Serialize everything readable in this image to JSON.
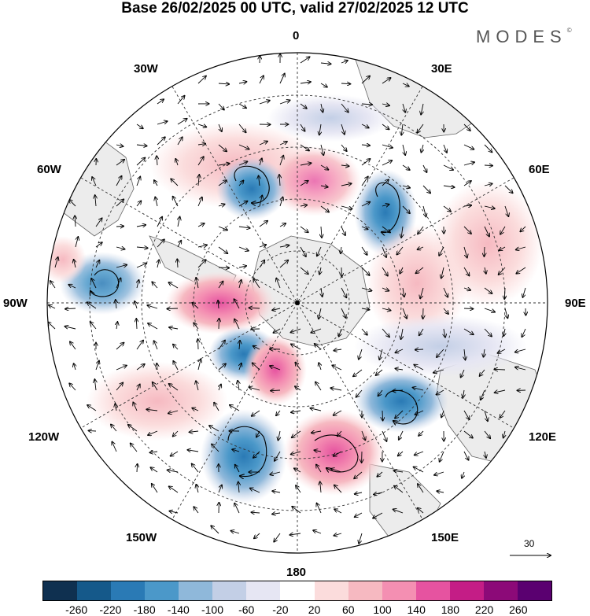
{
  "title": "Base 26/02/2025 00 UTC, valid 27/02/2025 12 UTC",
  "brand": "MODES",
  "brand_mark": "©",
  "longitude_labels": {
    "top": "0",
    "bottom": "180",
    "w30": "30W",
    "e30": "30E",
    "w60": "60W",
    "e60": "60E",
    "w90": "90W",
    "e90": "90E",
    "w120": "120W",
    "e120": "120E",
    "w150": "150W",
    "e150": "150E"
  },
  "reference_vector": "30",
  "colorbar": {
    "colors": [
      "#0f3050",
      "#15598a",
      "#2a7ab5",
      "#4b98c9",
      "#8fb8da",
      "#c3cfe6",
      "#e6e6f3",
      "#ffffff",
      "#fbdcdc",
      "#f6b9c1",
      "#f48fb2",
      "#e653a0",
      "#c41d86",
      "#8c0a78",
      "#5a0070"
    ],
    "ticks": [
      "-260",
      "-220",
      "-180",
      "-140",
      "-100",
      "-60",
      "-20",
      "20",
      "60",
      "100",
      "140",
      "180",
      "220",
      "260"
    ]
  },
  "anomaly_centers": [
    {
      "sign": "positive",
      "level": 180,
      "sector": "90W"
    },
    {
      "sign": "positive",
      "level": 140,
      "sector": "165W"
    },
    {
      "sign": "positive",
      "level": 140,
      "sector": "165E"
    },
    {
      "sign": "positive",
      "level": 100,
      "sector": "10E"
    },
    {
      "sign": "negative",
      "level": -140,
      "sector": "25W"
    },
    {
      "sign": "negative",
      "level": -140,
      "sector": "45E"
    },
    {
      "sign": "negative",
      "level": -140,
      "sector": "150W"
    },
    {
      "sign": "negative",
      "level": -140,
      "sector": "130E"
    },
    {
      "sign": "negative",
      "level": -100,
      "sector": "75W"
    },
    {
      "sign": "negative",
      "level": -100,
      "sector": "120W"
    }
  ]
}
